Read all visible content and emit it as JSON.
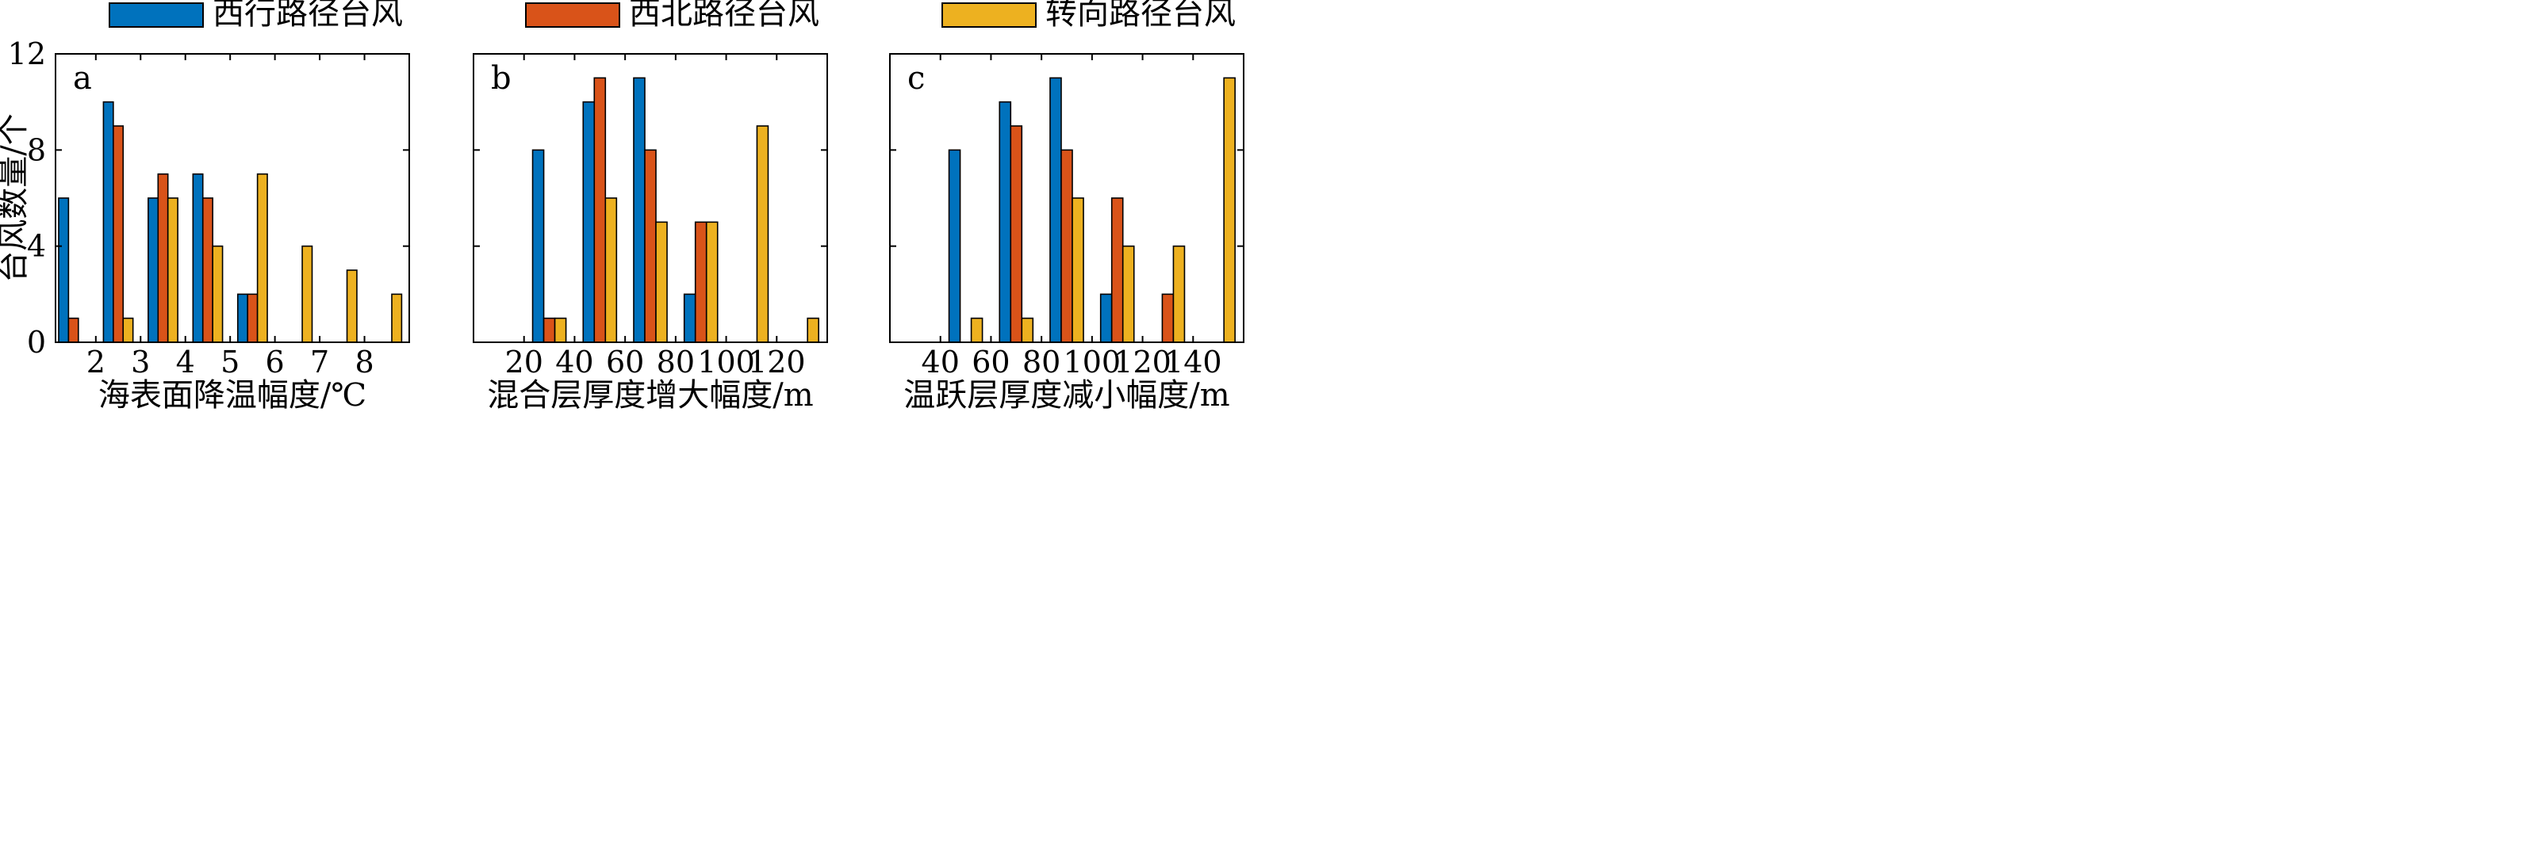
{
  "chart_data": {
    "type": "bar",
    "legend": {
      "placement": "top",
      "entries": [
        {
          "label": "西行路径台风",
          "color": "#0072BD"
        },
        {
          "label": "西北路径台风",
          "color": "#D95319"
        },
        {
          "label": "转向路径台风",
          "color": "#EDB120"
        }
      ]
    },
    "ylabel": "台风数量/个",
    "ylim": [
      0,
      12
    ],
    "yticks": [
      0,
      4,
      8,
      12
    ],
    "panels": [
      {
        "panel_label": "a",
        "xlabel": "海表面降温幅度/℃",
        "xlim": [
          1.1,
          9.0
        ],
        "xticks": [
          2,
          3,
          4,
          5,
          6,
          7,
          8
        ],
        "bin_centers": [
          1.5,
          2.5,
          3.5,
          4.5,
          5.5,
          6.5,
          7.5,
          8.5
        ],
        "series": [
          {
            "name": "西行路径台风",
            "values": [
              6,
              10,
              6,
              7,
              2,
              0,
              0,
              0
            ]
          },
          {
            "name": "西北路径台风",
            "values": [
              1,
              9,
              7,
              6,
              2,
              0,
              0,
              0
            ]
          },
          {
            "name": "转向路径台风",
            "values": [
              0,
              1,
              6,
              4,
              7,
              4,
              3,
              2
            ]
          }
        ]
      },
      {
        "panel_label": "b",
        "xlabel": "混合层厚度增大幅度/m",
        "xlim": [
          0,
          140
        ],
        "xticks": [
          20,
          40,
          60,
          80,
          100,
          120
        ],
        "bin_centers": [
          10,
          30,
          50,
          70,
          90,
          110,
          130
        ],
        "series": [
          {
            "name": "西行路径台风",
            "values": [
              0,
              8,
              10,
              11,
              2,
              0,
              0
            ]
          },
          {
            "name": "西北路径台风",
            "values": [
              0,
              1,
              11,
              8,
              5,
              0,
              0
            ]
          },
          {
            "name": "转向路径台风",
            "values": [
              0,
              1,
              6,
              5,
              5,
              9,
              1
            ]
          }
        ]
      },
      {
        "panel_label": "c",
        "xlabel": "温跃层厚度减小幅度/m",
        "xlim": [
          20,
          160
        ],
        "xticks": [
          40,
          60,
          80,
          100,
          120,
          140
        ],
        "bin_centers": [
          30,
          50,
          70,
          90,
          110,
          130,
          150
        ],
        "series": [
          {
            "name": "西行路径台风",
            "values": [
              0,
              8,
              10,
              11,
              2,
              0,
              0
            ]
          },
          {
            "name": "西北路径台风",
            "values": [
              0,
              0,
              9,
              8,
              6,
              2,
              0
            ]
          },
          {
            "name": "转向路径台风",
            "values": [
              0,
              1,
              1,
              6,
              4,
              4,
              11
            ]
          }
        ]
      }
    ]
  }
}
